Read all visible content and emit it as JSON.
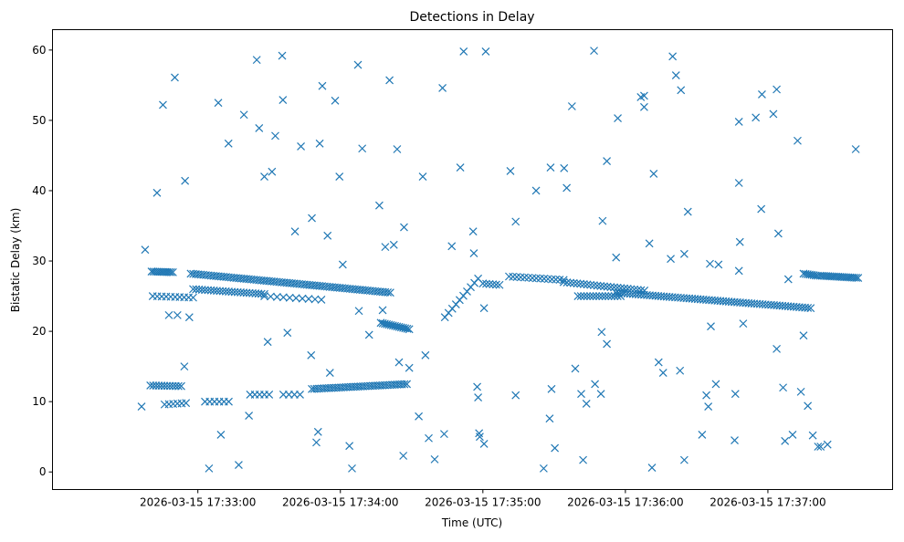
{
  "chart_data": {
    "type": "scatter",
    "title": "Detections in Delay",
    "xlabel": "Time (UTC)",
    "ylabel": "Bistatic Delay (km)",
    "x_unit": "seconds after 2026-03-15 17:32:00",
    "xlim": [
      -1.2,
      352.5
    ],
    "ylim": [
      -2.5,
      62.9
    ],
    "xticks": [
      {
        "value": 60,
        "label": "2026-03-15 17:33:00"
      },
      {
        "value": 120,
        "label": "2026-03-15 17:34:00"
      },
      {
        "value": 180,
        "label": "2026-03-15 17:35:00"
      },
      {
        "value": 240,
        "label": "2026-03-15 17:36:00"
      },
      {
        "value": 300,
        "label": "2026-03-15 17:37:00"
      }
    ],
    "yticks": [
      {
        "value": 0,
        "label": "0"
      },
      {
        "value": 10,
        "label": "10"
      },
      {
        "value": 20,
        "label": "20"
      },
      {
        "value": 30,
        "label": "30"
      },
      {
        "value": 40,
        "label": "40"
      },
      {
        "value": 50,
        "label": "50"
      },
      {
        "value": 60,
        "label": "60"
      }
    ],
    "grid": false,
    "marker": "x",
    "color": "#1f77b4",
    "tracks": [
      {
        "t0": 40.5,
        "t1": 49.5,
        "km0": 28.5,
        "km1": 28.4,
        "n": 12
      },
      {
        "t0": 57,
        "t1": 141,
        "km0": 28.2,
        "km1": 25.5,
        "n": 80
      },
      {
        "t0": 58,
        "t1": 88,
        "km0": 26.0,
        "km1": 25.3,
        "n": 25
      },
      {
        "t0": 88,
        "t1": 112,
        "km0": 25.0,
        "km1": 24.5,
        "n": 10
      },
      {
        "t0": 41,
        "t1": 58,
        "km0": 25.0,
        "km1": 24.8,
        "n": 10
      },
      {
        "t0": 40,
        "t1": 53,
        "km0": 12.3,
        "km1": 12.2,
        "n": 12
      },
      {
        "t0": 46,
        "t1": 55,
        "km0": 9.6,
        "km1": 9.8,
        "n": 6
      },
      {
        "t0": 63,
        "t1": 73,
        "km0": 10.0,
        "km1": 10.0,
        "n": 6
      },
      {
        "t0": 82,
        "t1": 90,
        "km0": 11.0,
        "km1": 11.0,
        "n": 5
      },
      {
        "t0": 96,
        "t1": 103,
        "km0": 11.0,
        "km1": 11.0,
        "n": 4
      },
      {
        "t0": 108,
        "t1": 148,
        "km0": 11.8,
        "km1": 12.5,
        "n": 40
      },
      {
        "t0": 137,
        "t1": 149,
        "km0": 21.2,
        "km1": 20.3,
        "n": 15
      },
      {
        "t0": 164,
        "t1": 178,
        "km0": 22.0,
        "km1": 27.5,
        "n": 10
      },
      {
        "t0": 180,
        "t1": 187,
        "km0": 26.8,
        "km1": 26.6,
        "n": 6
      },
      {
        "t0": 191,
        "t1": 214,
        "km0": 27.8,
        "km1": 27.3,
        "n": 15
      },
      {
        "t0": 214,
        "t1": 248,
        "km0": 27.0,
        "km1": 25.8,
        "n": 25
      },
      {
        "t0": 220,
        "t1": 238,
        "km0": 25.0,
        "km1": 25.0,
        "n": 15
      },
      {
        "t0": 236,
        "t1": 318,
        "km0": 25.5,
        "km1": 23.3,
        "n": 70
      },
      {
        "t0": 315,
        "t1": 321,
        "km0": 28.2,
        "km1": 27.9,
        "n": 8
      },
      {
        "t0": 322,
        "t1": 338,
        "km0": 27.9,
        "km1": 27.6,
        "n": 20
      }
    ],
    "points": [
      [
        36.3,
        9.3
      ],
      [
        37.8,
        31.6
      ],
      [
        42.8,
        39.7
      ],
      [
        45.3,
        52.2
      ],
      [
        50.3,
        56.1
      ],
      [
        47.8,
        22.3
      ],
      [
        51.4,
        22.3
      ],
      [
        54.3,
        15
      ],
      [
        54.6,
        41.4
      ],
      [
        56.4,
        22
      ],
      [
        64.7,
        0.5
      ],
      [
        68.6,
        52.5
      ],
      [
        69.7,
        5.3
      ],
      [
        72.9,
        46.7
      ],
      [
        77.2,
        1.0
      ],
      [
        79.4,
        50.8
      ],
      [
        81.5,
        8
      ],
      [
        84.8,
        58.6
      ],
      [
        85.8,
        48.9
      ],
      [
        88,
        42
      ],
      [
        89.4,
        18.5
      ],
      [
        91.2,
        42.7
      ],
      [
        92.6,
        47.8
      ],
      [
        95.5,
        59.2
      ],
      [
        95.8,
        52.9
      ],
      [
        97.7,
        19.8
      ],
      [
        100.9,
        34.2
      ],
      [
        103.4,
        46.3
      ],
      [
        107.7,
        16.6
      ],
      [
        108,
        36.1
      ],
      [
        109.9,
        4.2
      ],
      [
        110.6,
        5.7
      ],
      [
        111.3,
        46.7
      ],
      [
        112.4,
        54.9
      ],
      [
        114.6,
        33.6
      ],
      [
        115.6,
        14.1
      ],
      [
        117.8,
        52.8
      ],
      [
        119.6,
        42
      ],
      [
        121,
        29.5
      ],
      [
        123.8,
        3.7
      ],
      [
        124.9,
        0.5
      ],
      [
        127.4,
        57.9
      ],
      [
        129.2,
        46
      ],
      [
        127.8,
        22.9
      ],
      [
        132.1,
        19.5
      ],
      [
        136.4,
        37.9
      ],
      [
        137.8,
        23
      ],
      [
        138.9,
        32
      ],
      [
        140.7,
        55.7
      ],
      [
        142.5,
        32.3
      ],
      [
        143.9,
        45.9
      ],
      [
        144.7,
        15.6
      ],
      [
        146.8,
        34.8
      ],
      [
        146.5,
        2.3
      ],
      [
        149,
        14.8
      ],
      [
        153,
        7.9
      ],
      [
        154.7,
        42
      ],
      [
        155.8,
        16.6
      ],
      [
        157.2,
        4.8
      ],
      [
        159.7,
        1.8
      ],
      [
        163,
        54.6
      ],
      [
        163.7,
        5.4
      ],
      [
        166.9,
        32.1
      ],
      [
        170.5,
        43.3
      ],
      [
        171.9,
        59.8
      ],
      [
        175.9,
        34.2
      ],
      [
        176.2,
        31.1
      ],
      [
        177.6,
        12.1
      ],
      [
        178,
        10.6
      ],
      [
        178.4,
        5.5
      ],
      [
        178.7,
        5
      ],
      [
        180.5,
        4
      ],
      [
        181.2,
        59.8
      ],
      [
        180.5,
        23.3
      ],
      [
        191.6,
        42.8
      ],
      [
        193.8,
        35.6
      ],
      [
        193.8,
        10.9
      ],
      [
        202.4,
        40
      ],
      [
        205.6,
        0.5
      ],
      [
        208.5,
        43.3
      ],
      [
        208.1,
        7.6
      ],
      [
        208.9,
        11.8
      ],
      [
        210.3,
        3.4
      ],
      [
        214.2,
        43.2
      ],
      [
        215.3,
        40.4
      ],
      [
        217.5,
        52
      ],
      [
        218.9,
        14.7
      ],
      [
        221.4,
        11.1
      ],
      [
        222.2,
        1.7
      ],
      [
        223.6,
        9.7
      ],
      [
        226.8,
        59.9
      ],
      [
        227.2,
        12.5
      ],
      [
        229.7,
        11.1
      ],
      [
        230,
        19.9
      ],
      [
        230.4,
        35.7
      ],
      [
        232.2,
        18.2
      ],
      [
        232.2,
        44.2
      ],
      [
        236.1,
        30.5
      ],
      [
        236.8,
        50.3
      ],
      [
        246.5,
        53.3
      ],
      [
        247.9,
        53.5
      ],
      [
        247.9,
        51.9
      ],
      [
        250.1,
        32.5
      ],
      [
        251.2,
        0.6
      ],
      [
        251.9,
        42.4
      ],
      [
        254,
        15.6
      ],
      [
        255.9,
        14.1
      ],
      [
        259.1,
        30.3
      ],
      [
        259.9,
        59.1
      ],
      [
        261.3,
        56.4
      ],
      [
        263,
        14.4
      ],
      [
        263.4,
        54.3
      ],
      [
        264.8,
        1.7
      ],
      [
        264.8,
        31
      ],
      [
        266.3,
        37
      ],
      [
        272.3,
        5.3
      ],
      [
        274.1,
        10.9
      ],
      [
        274.9,
        9.3
      ],
      [
        275.6,
        29.6
      ],
      [
        276,
        20.7
      ],
      [
        278.1,
        12.5
      ],
      [
        279.2,
        29.5
      ],
      [
        286.3,
        11.1
      ],
      [
        286,
        4.5
      ],
      [
        287.8,
        49.8
      ],
      [
        287.8,
        41.1
      ],
      [
        288.2,
        32.7
      ],
      [
        287.8,
        28.6
      ],
      [
        289.6,
        21.1
      ],
      [
        294.9,
        50.4
      ],
      [
        297.2,
        37.4
      ],
      [
        297.5,
        53.7
      ],
      [
        302.3,
        50.9
      ],
      [
        303.7,
        54.4
      ],
      [
        303.7,
        17.5
      ],
      [
        304.4,
        33.9
      ],
      [
        306.4,
        12
      ],
      [
        307.2,
        4.4
      ],
      [
        308.6,
        27.4
      ],
      [
        310.4,
        5.3
      ],
      [
        312.5,
        47.1
      ],
      [
        313.9,
        11.4
      ],
      [
        315,
        19.4
      ],
      [
        316.8,
        9.4
      ],
      [
        318.9,
        5.2
      ],
      [
        321.1,
        3.6
      ],
      [
        322.2,
        3.6
      ],
      [
        325.1,
        3.9
      ],
      [
        337,
        45.9
      ]
    ]
  }
}
